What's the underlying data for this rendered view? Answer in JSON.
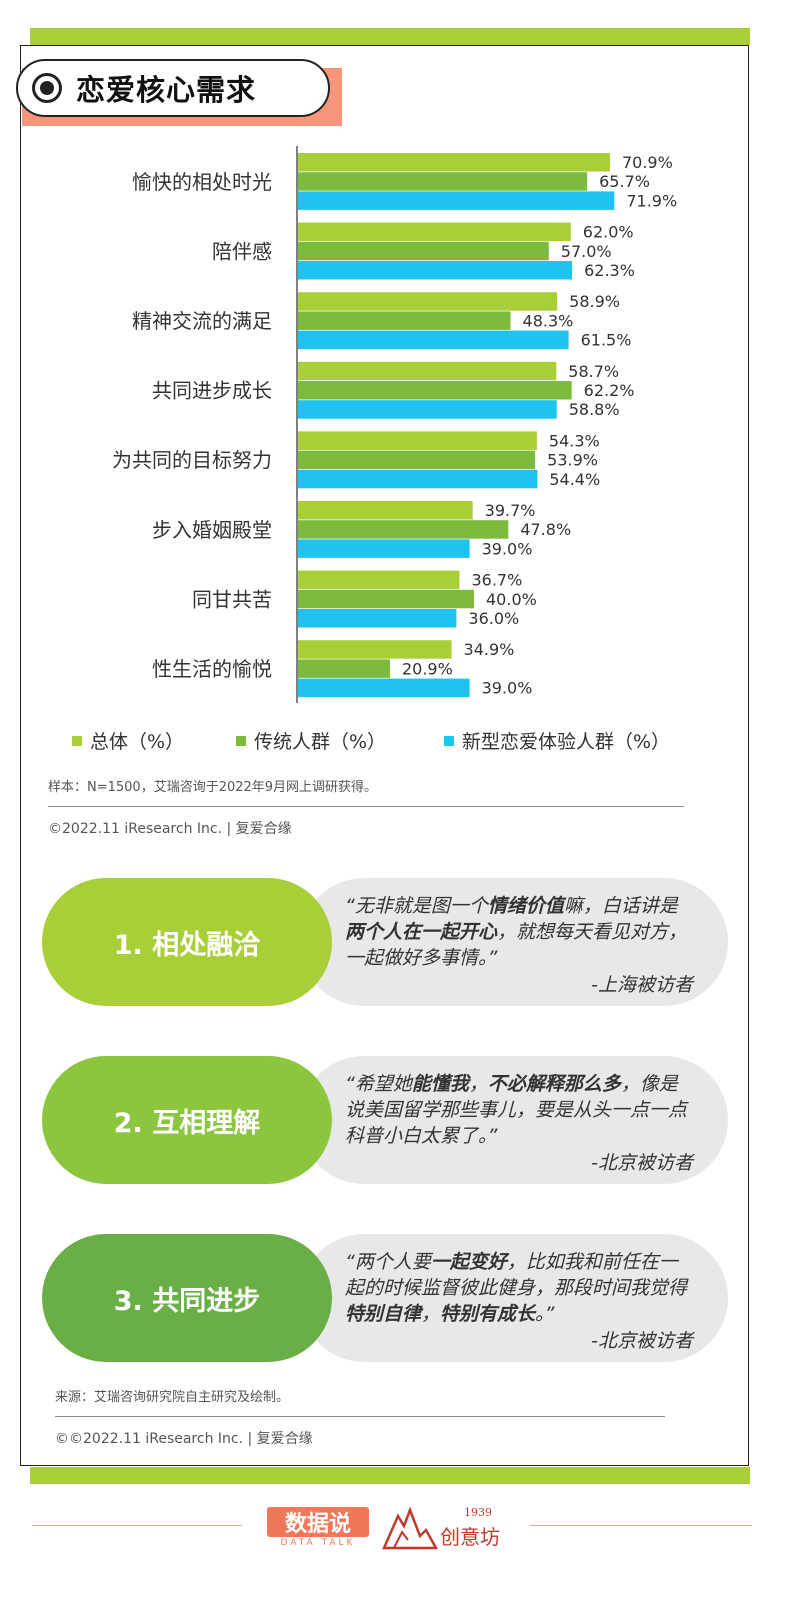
{
  "title": "恋爱核心需求",
  "chart_data": {
    "type": "bar",
    "orientation": "horizontal",
    "categories": [
      "愉快的相处时光",
      "陪伴感",
      "精神交流的满足",
      "共同进步成长",
      "为共同的目标努力",
      "步入婚姻殿堂",
      "同甘共苦",
      "性生活的愉悦"
    ],
    "series": [
      {
        "name": "总体（%）",
        "color": "#a9cf38",
        "values": [
          70.9,
          62.0,
          58.9,
          58.7,
          54.3,
          39.7,
          36.7,
          34.9
        ],
        "labels": [
          "70.9%",
          "62.0%",
          "58.9%",
          "58.7%",
          "54.3%",
          "39.7%",
          "36.7%",
          "34.9%"
        ]
      },
      {
        "name": "传统人群（%）",
        "color": "#7cbb3d",
        "values": [
          65.7,
          57.0,
          48.3,
          62.2,
          53.9,
          47.8,
          40.0,
          20.9
        ],
        "labels": [
          "65.7%",
          "57.0%",
          "48.3%",
          "62.2%",
          "53.9%",
          "47.8%",
          "40.0%",
          "20.9%"
        ]
      },
      {
        "name": "新型恋爱体验人群（%）",
        "color": "#1ec3ef",
        "values": [
          71.9,
          62.3,
          61.5,
          58.8,
          54.4,
          39.0,
          36.0,
          39.0
        ],
        "labels": [
          "71.9%",
          "62.3%",
          "61.5%",
          "58.8%",
          "54.4%",
          "39.0%",
          "36.0%",
          "39.0%"
        ]
      }
    ],
    "xlim": [
      0,
      100
    ],
    "legend_position": "bottom",
    "grid": false
  },
  "notes": {
    "sample": "样本：N=1500，艾瑞咨询于2022年9月网上调研获得。",
    "copyright1": "©2022.11 iResearch Inc. | 复爱合缘",
    "source": "来源：艾瑞咨询研究院自主研究及绘制。",
    "copyright2": "©©2022.11 iResearch Inc. | 复爱合缘"
  },
  "quotes": [
    {
      "label": "1. 相处融洽",
      "color": "#a9cf38",
      "text_html": "“无非就是图一个<b>情绪价值</b>嘛，白话讲是<b>两个人在一起开心</b>，就想每天看见对方，一起做好多事情。”",
      "source": "-上海被访者"
    },
    {
      "label": "2. 互相理解",
      "color": "#8cc63f",
      "text_html": "“希望她<b>能懂我</b>，<b>不必解释那么多</b>，像是说美国留学那些事儿，要是从头一点一点科普小白太累了。”",
      "source": "-北京被访者"
    },
    {
      "label": "3. 共同进步",
      "color": "#6aaf45",
      "text_html": "“两个人要<b>一起变好</b>，比如我和前任在一起的时候监督彼此健身，那段时间我觉得<b>特别自律</b>，<b>特别有成长</b>。”",
      "source": "-北京被访者"
    }
  ],
  "footer": {
    "logo1": "数据说",
    "logo1_sub": "DATA TALK",
    "logo2": "创意坊",
    "logo2_year": "1939"
  },
  "colors": {
    "accent_green": "#a9cf38",
    "title_orange": "#f4957c"
  }
}
